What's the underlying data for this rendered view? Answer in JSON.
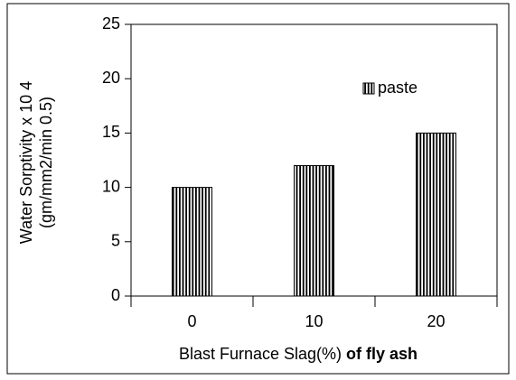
{
  "chart_data": {
    "type": "bar",
    "ylabel": [
      "Water Sorptivity x 10 4",
      "(gm/mm2/min 0.5)"
    ],
    "xlabel": [
      "Blast Furnace Slag(%)",
      "of fly ash"
    ],
    "categories": [
      "0",
      "10",
      "20"
    ],
    "series": [
      {
        "name": "paste",
        "color": "#000000",
        "values": [
          10,
          12,
          15
        ]
      }
    ],
    "ylim": [
      0,
      25
    ],
    "yticks": [
      0,
      5,
      10,
      15,
      20,
      25
    ],
    "legend": "upper right",
    "grid": false
  }
}
